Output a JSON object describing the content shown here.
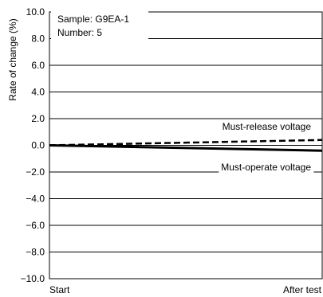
{
  "chart_data": {
    "type": "line",
    "ylabel": "Rate of change (%)",
    "ylim": [
      -10.0,
      10.0
    ],
    "yticks": [
      "10.0",
      "8.0",
      "6.0",
      "4.0",
      "2.0",
      "0.0",
      "−2.0",
      "−4.0",
      "−6.0",
      "−8.0",
      "−10.0"
    ],
    "ytick_values": [
      10,
      8,
      6,
      4,
      2,
      0,
      -2,
      -4,
      -6,
      -8,
      -10
    ],
    "categories": [
      "Start",
      "After test"
    ],
    "grid": true,
    "annotation": {
      "sample": "Sample: G9EA-1",
      "number": "Number: 5"
    },
    "series": [
      {
        "name": "Must-release voltage",
        "style": "dashed",
        "values": [
          0.0,
          0.4
        ]
      },
      {
        "name": "Must-operate voltage",
        "style": "solid",
        "values": [
          0.0,
          -0.4
        ]
      }
    ]
  }
}
